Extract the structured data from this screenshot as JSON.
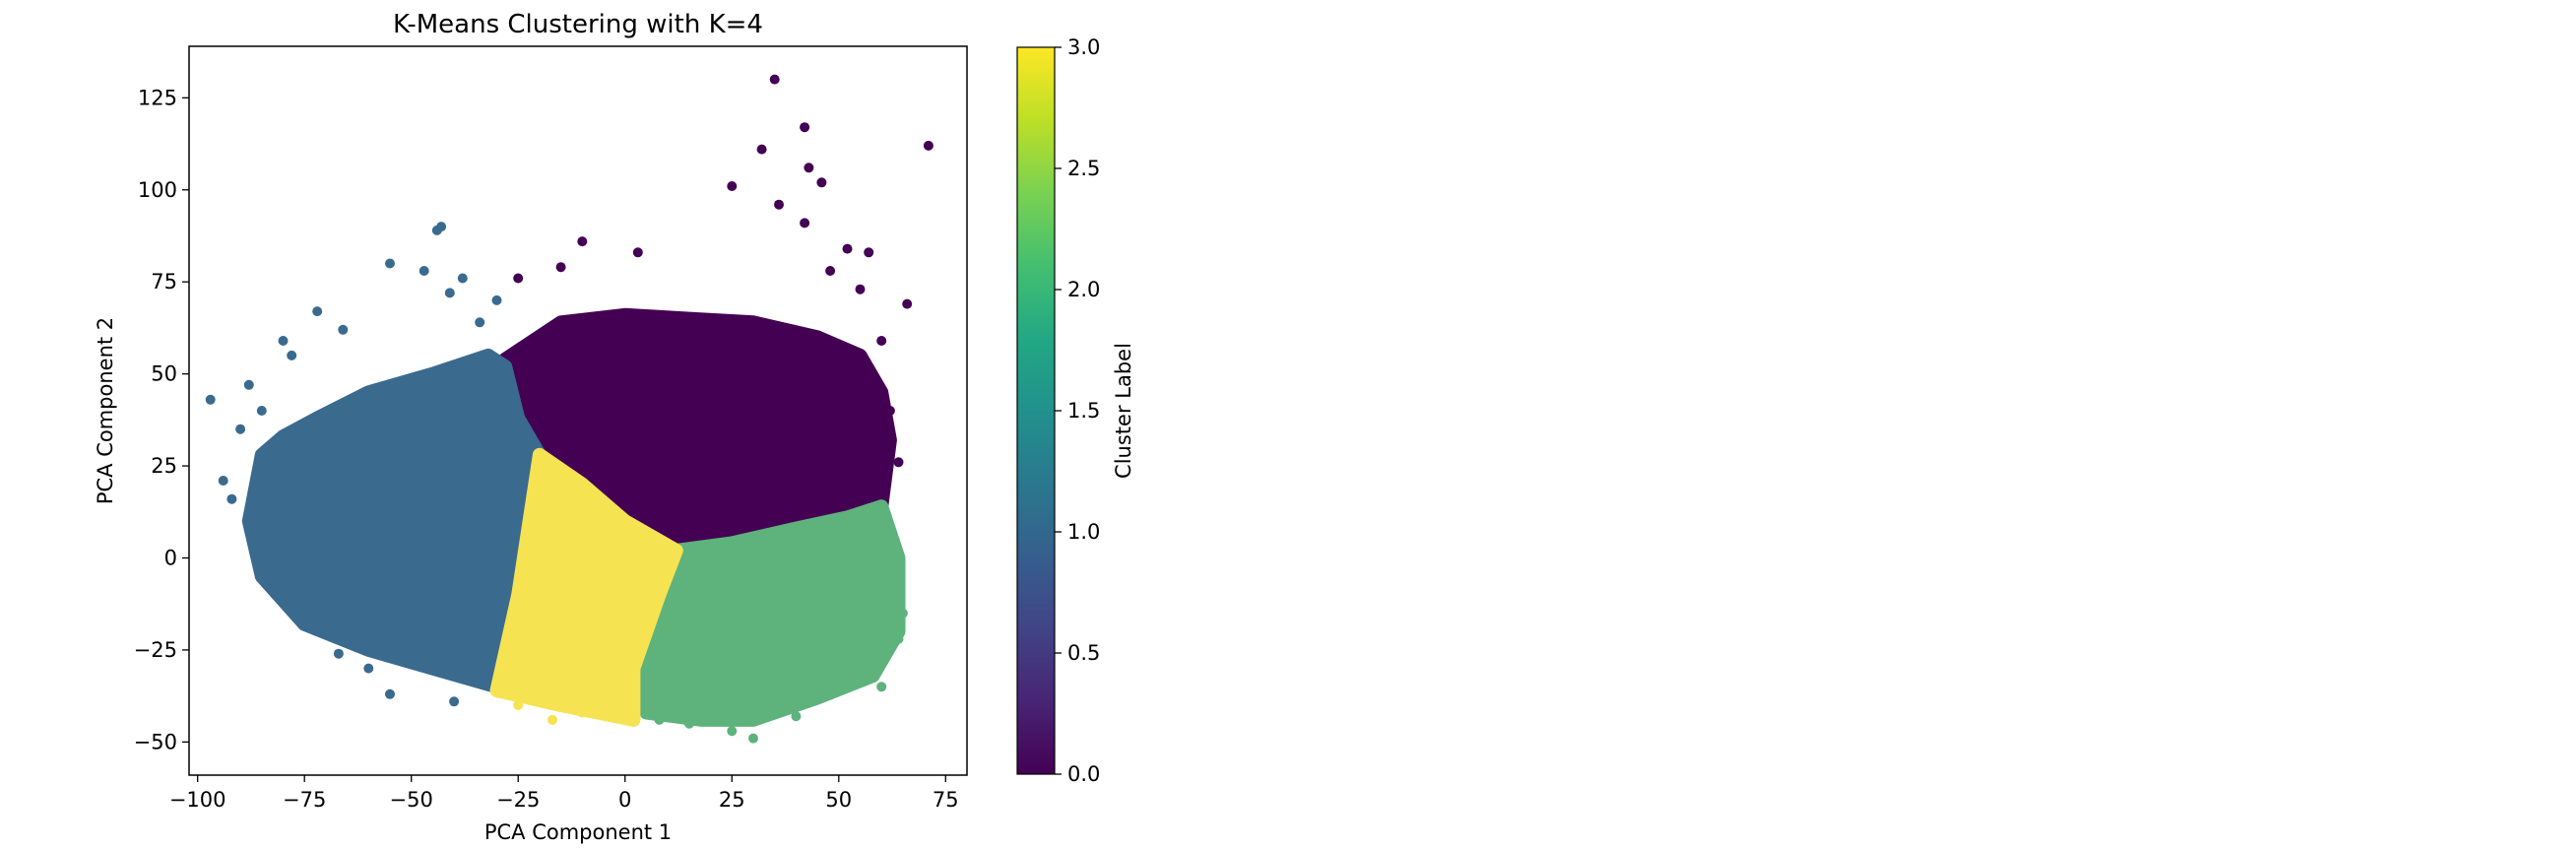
{
  "chart_data": {
    "type": "scatter",
    "title": "K-Means Clustering with K=4",
    "xlabel": "PCA Component 1",
    "ylabel": "PCA Component 2",
    "xlim": [
      -102,
      80
    ],
    "ylim": [
      -59,
      139
    ],
    "xticks": [
      -100,
      -75,
      -50,
      -25,
      0,
      25,
      50,
      75
    ],
    "yticks": [
      -50,
      -25,
      0,
      25,
      50,
      75,
      100,
      125
    ],
    "grid": false,
    "legend": "none",
    "colorbar": {
      "label": "Cluster Label",
      "range": [
        0.0,
        3.0
      ],
      "ticks": [
        "0.0",
        "0.5",
        "1.0",
        "1.5",
        "2.0",
        "2.5",
        "3.0"
      ],
      "colormap": "viridis"
    },
    "clusters": [
      {
        "label": 0,
        "color": "#440154",
        "region": [
          [
            -28,
            54
          ],
          [
            -15,
            64
          ],
          [
            0,
            66
          ],
          [
            15,
            65
          ],
          [
            30,
            64
          ],
          [
            45,
            60
          ],
          [
            55,
            55
          ],
          [
            60,
            45
          ],
          [
            62,
            32
          ],
          [
            60,
            14
          ],
          [
            50,
            10
          ],
          [
            40,
            8
          ],
          [
            25,
            4
          ],
          [
            12,
            0
          ],
          [
            -5,
            15
          ],
          [
            -18,
            28
          ],
          [
            -27,
            38
          ]
        ]
      },
      {
        "label": 1,
        "color": "#3b6a8f",
        "region": [
          [
            -88,
            10
          ],
          [
            -85,
            28
          ],
          [
            -80,
            33
          ],
          [
            -72,
            38
          ],
          [
            -60,
            45
          ],
          [
            -45,
            50
          ],
          [
            -32,
            55
          ],
          [
            -28,
            52
          ],
          [
            -25,
            38
          ],
          [
            -20,
            28
          ],
          [
            -25,
            -10
          ],
          [
            -30,
            -35
          ],
          [
            -45,
            -30
          ],
          [
            -60,
            -25
          ],
          [
            -75,
            -18
          ],
          [
            -85,
            -5
          ]
        ]
      },
      {
        "label": 2,
        "color": "#5db37b",
        "region": [
          [
            12,
            2
          ],
          [
            25,
            4
          ],
          [
            40,
            8
          ],
          [
            52,
            11
          ],
          [
            60,
            14
          ],
          [
            64,
            0
          ],
          [
            64,
            -20
          ],
          [
            58,
            -32
          ],
          [
            45,
            -38
          ],
          [
            30,
            -44
          ],
          [
            18,
            -44
          ],
          [
            5,
            -42
          ],
          [
            2,
            -30
          ],
          [
            8,
            -10
          ]
        ]
      },
      {
        "label": 3,
        "color": "#f5e352",
        "region": [
          [
            -20,
            28
          ],
          [
            -10,
            20
          ],
          [
            0,
            10
          ],
          [
            12,
            2
          ],
          [
            8,
            -10
          ],
          [
            2,
            -30
          ],
          [
            2,
            -44
          ],
          [
            -15,
            -40
          ],
          [
            -30,
            -36
          ],
          [
            -25,
            -10
          ]
        ]
      }
    ],
    "outliers": [
      {
        "label": 0,
        "points": [
          [
            35,
            130
          ],
          [
            42,
            117
          ],
          [
            71,
            112
          ],
          [
            32,
            111
          ],
          [
            43,
            106
          ],
          [
            46,
            102
          ],
          [
            25,
            101
          ],
          [
            36,
            96
          ],
          [
            42,
            91
          ],
          [
            52,
            84
          ],
          [
            57,
            83
          ],
          [
            66,
            69
          ],
          [
            60,
            59
          ],
          [
            55,
            73
          ],
          [
            48,
            78
          ],
          [
            -10,
            86
          ],
          [
            3,
            83
          ],
          [
            -15,
            79
          ],
          [
            -25,
            76
          ],
          [
            62,
            40
          ],
          [
            64,
            26
          ]
        ]
      },
      {
        "label": 1,
        "points": [
          [
            -97,
            43
          ],
          [
            -94,
            21
          ],
          [
            -90,
            35
          ],
          [
            -92,
            16
          ],
          [
            -88,
            47
          ],
          [
            -85,
            40
          ],
          [
            -80,
            59
          ],
          [
            -78,
            55
          ],
          [
            -72,
            67
          ],
          [
            -66,
            62
          ],
          [
            -55,
            80
          ],
          [
            -44,
            89
          ],
          [
            -43,
            90
          ],
          [
            -47,
            78
          ],
          [
            -41,
            72
          ],
          [
            -38,
            76
          ],
          [
            -30,
            70
          ],
          [
            -34,
            64
          ],
          [
            -55,
            -37
          ],
          [
            -40,
            -39
          ],
          [
            -67,
            -26
          ],
          [
            -60,
            -30
          ],
          [
            -48,
            -28
          ]
        ]
      },
      {
        "label": 2,
        "points": [
          [
            30,
            -49
          ],
          [
            25,
            -47
          ],
          [
            40,
            -43
          ],
          [
            15,
            -45
          ],
          [
            60,
            -35
          ],
          [
            64,
            -22
          ],
          [
            65,
            -15
          ],
          [
            55,
            -30
          ],
          [
            45,
            -38
          ],
          [
            8,
            -44
          ]
        ]
      },
      {
        "label": 3,
        "points": [
          [
            -17,
            -44
          ],
          [
            -25,
            -40
          ],
          [
            -10,
            -42
          ],
          [
            0,
            -44
          ],
          [
            -22,
            -35
          ],
          [
            -12,
            -39
          ]
        ]
      }
    ]
  }
}
